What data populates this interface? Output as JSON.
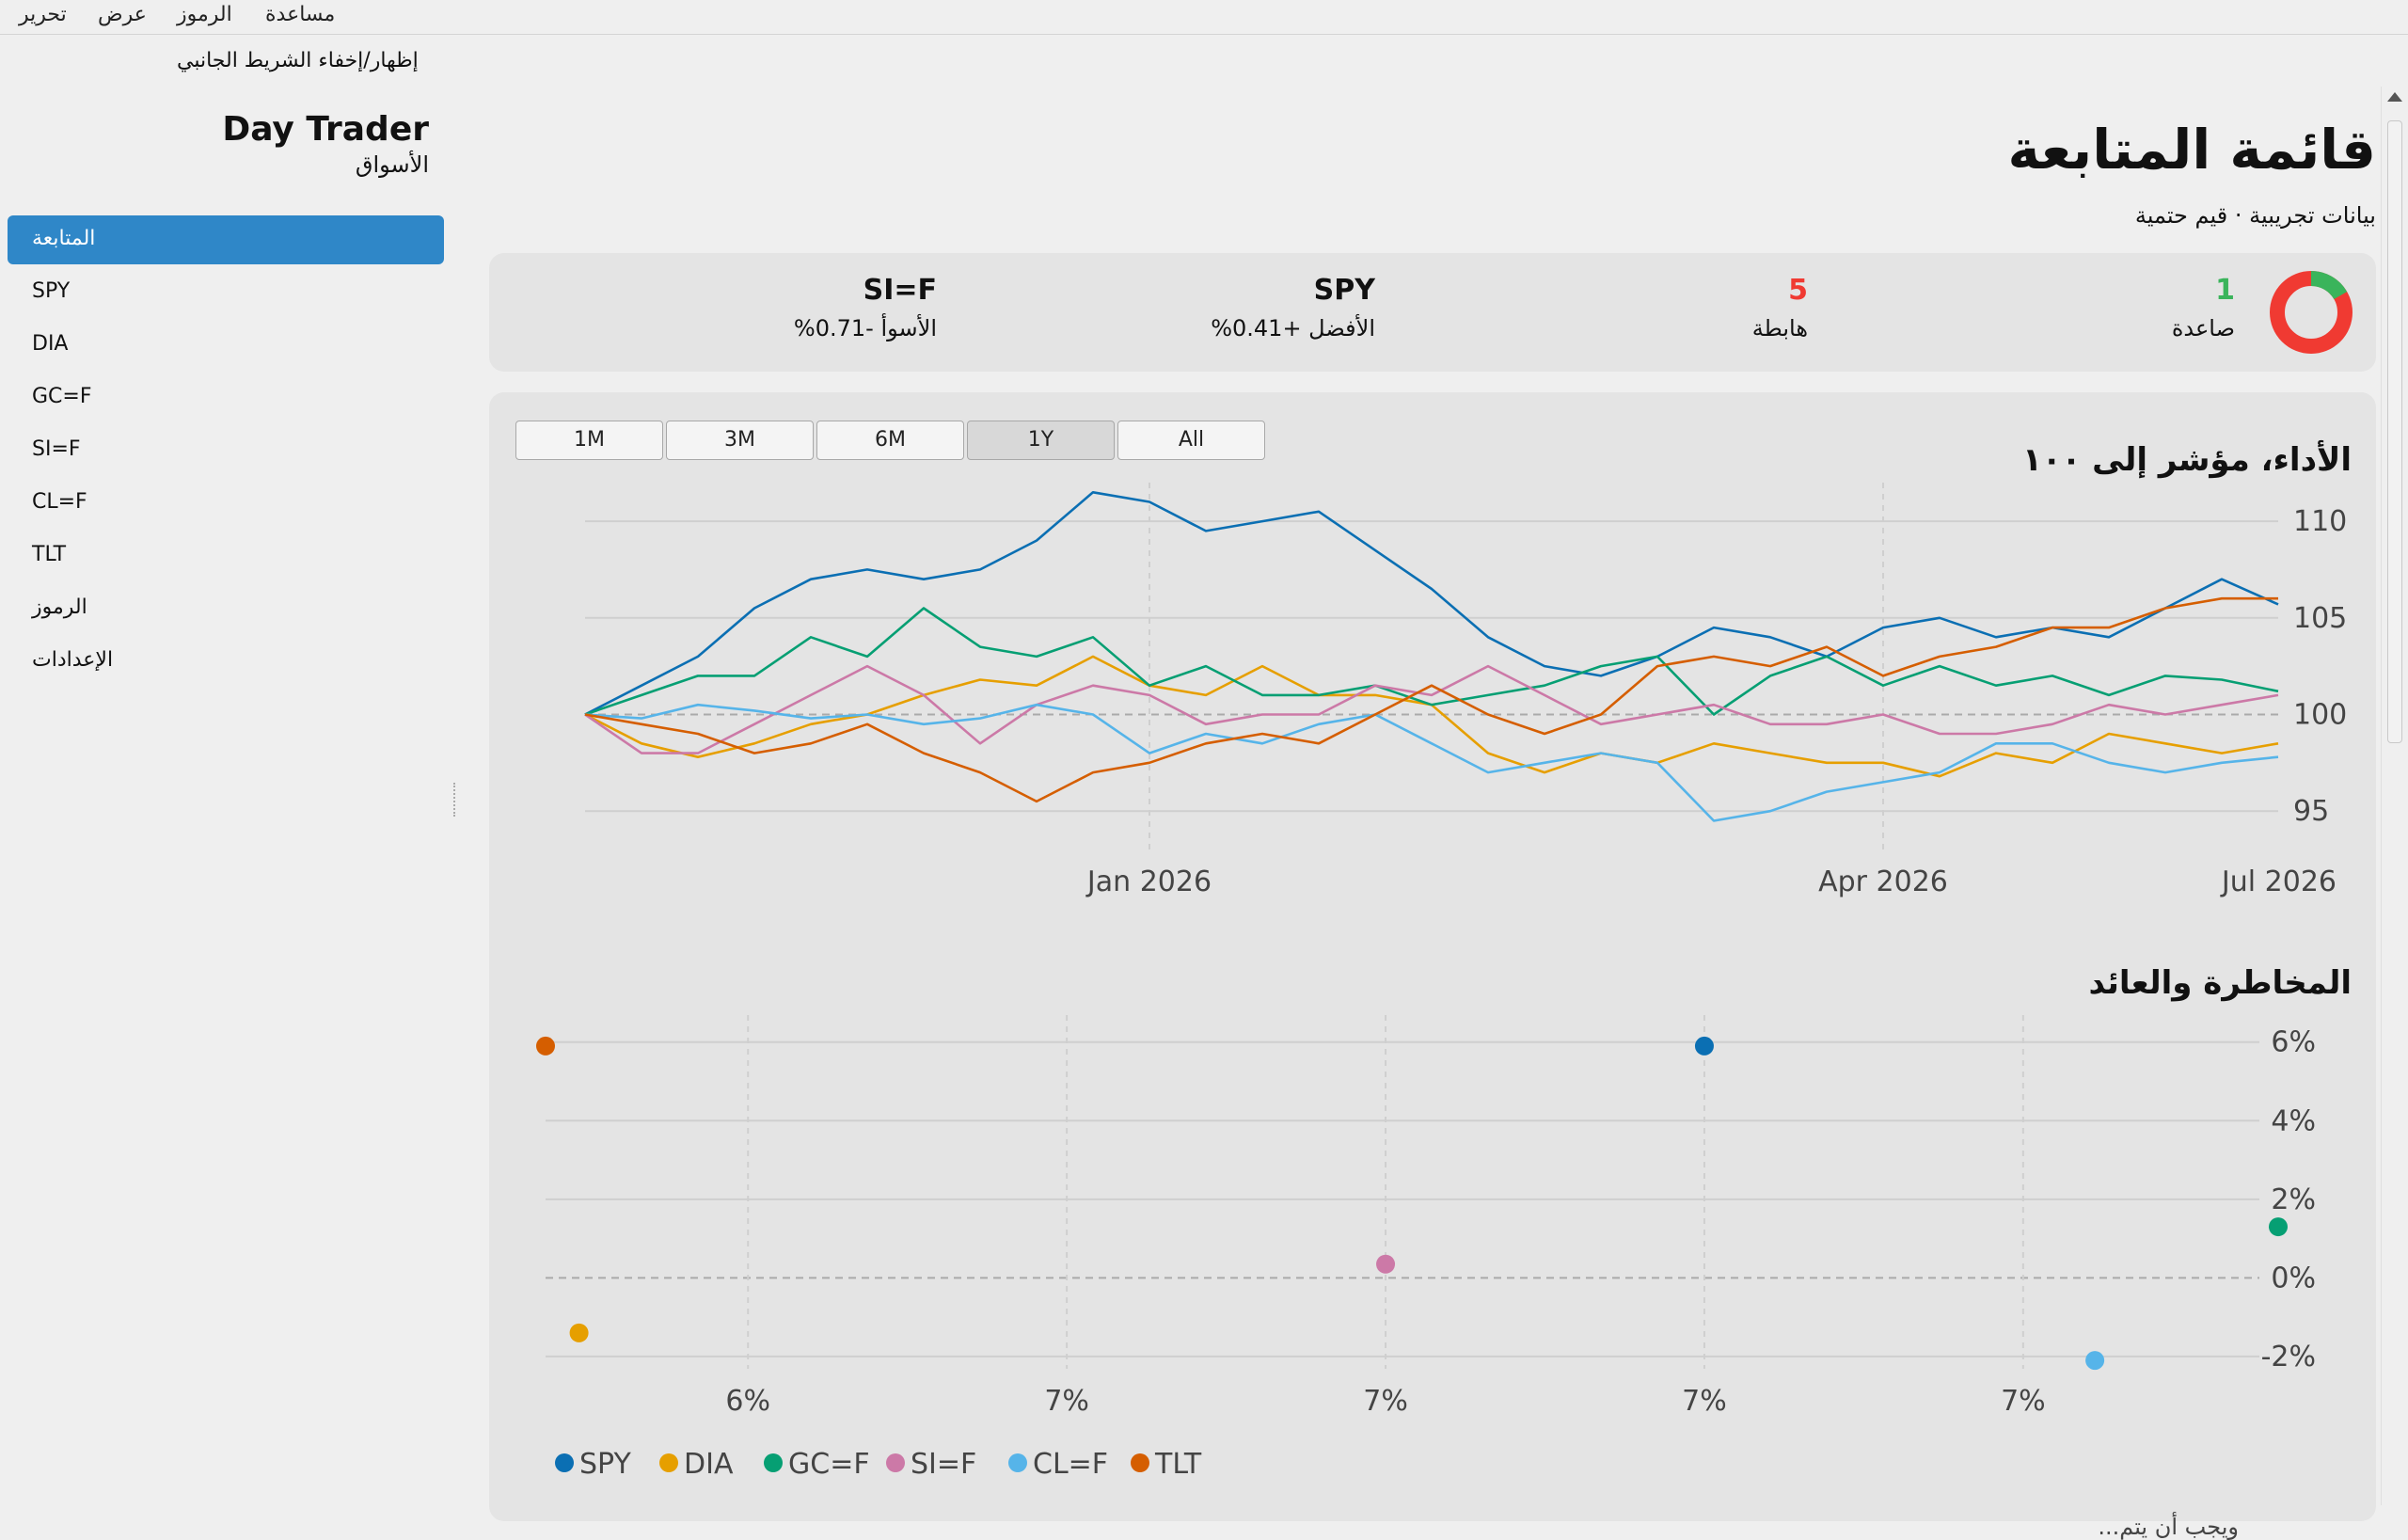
{
  "menu": [
    "تحرير",
    "عرض",
    "الرموز",
    "مساعدة"
  ],
  "sidebar": {
    "toggle_label": "إظهار/إخفاء الشريط الجانبي",
    "app_title": "Day Trader",
    "app_subtitle": "الأسواق",
    "items": [
      {
        "label": "المتابعة"
      },
      {
        "label": "SPY"
      },
      {
        "label": "DIA"
      },
      {
        "label": "GC=F"
      },
      {
        "label": "SI=F"
      },
      {
        "label": "CL=F"
      },
      {
        "label": "TLT"
      },
      {
        "label": "الرموز"
      },
      {
        "label": "الإعدادات"
      }
    ]
  },
  "page": {
    "title": "قائمة المتابعة",
    "subtitle": "بيانات تجريبية · قيم حتمية"
  },
  "summary": {
    "up_count": "1",
    "up_label": "صاعدة",
    "down_count": "5",
    "down_label": "هابطة",
    "best_symbol": "SPY",
    "best_label": "الأفضل +0.41%",
    "worst_symbol": "SI=F",
    "worst_label": "الأسوأ -0.71%",
    "up_color": "#3ab45b",
    "down_color": "#f03a32"
  },
  "performance": {
    "title": "الأداء، مؤشر إلى ١٠٠",
    "ranges": [
      "1M",
      "3M",
      "6M",
      "1Y",
      "All"
    ],
    "active_range": "1Y"
  },
  "risk": {
    "title": "المخاطرة والعائد",
    "footer_partial": "ويجب أن يتم..."
  },
  "colors": {
    "SPY": "#0b6fb3",
    "DIA": "#e69f00",
    "GC=F": "#069f73",
    "SI=F": "#cc79a7",
    "CL=F": "#56b4e9",
    "TLT": "#d55e00"
  },
  "chart_data": [
    {
      "type": "line",
      "title": "الأداء، مؤشر إلى ١٠٠",
      "x_ticks": [
        "Jan 2026",
        "Apr 2026",
        "Jul 2026"
      ],
      "y_ticks": [
        95,
        100,
        105,
        110
      ],
      "ylim": [
        93.5,
        112
      ],
      "grid": true,
      "legend": "bottom-left",
      "x_index": [
        0,
        10,
        20,
        30,
        40,
        50,
        60,
        70,
        80,
        90,
        100,
        110,
        120,
        130,
        140,
        150,
        160,
        170,
        180,
        190,
        200,
        210,
        220,
        230,
        240,
        250,
        260,
        270,
        280,
        290,
        300
      ],
      "series": [
        {
          "name": "SPY",
          "values": [
            100,
            101.5,
            103,
            105.5,
            107,
            107.5,
            107,
            107.5,
            109,
            111.5,
            111,
            109.5,
            110,
            110.5,
            108.5,
            106.5,
            104,
            102.5,
            102,
            103,
            104.5,
            104,
            103,
            104.5,
            105,
            104,
            104.5,
            104,
            105.5,
            107,
            105.7
          ]
        },
        {
          "name": "DIA",
          "values": [
            100,
            98.5,
            97.8,
            98.5,
            99.5,
            100,
            101,
            101.8,
            101.5,
            103,
            101.5,
            101,
            102.5,
            101,
            101,
            100.5,
            98,
            97,
            98,
            97.5,
            98.5,
            98,
            97.5,
            97.5,
            96.8,
            98,
            97.5,
            99,
            98.5,
            98,
            98.5
          ]
        },
        {
          "name": "GC=F",
          "values": [
            100,
            101,
            102,
            102,
            104,
            103,
            105.5,
            103.5,
            103,
            104,
            101.5,
            102.5,
            101,
            101,
            101.5,
            100.5,
            101,
            101.5,
            102.5,
            103,
            100,
            102,
            103,
            101.5,
            102.5,
            101.5,
            102,
            101,
            102,
            101.8,
            101.2
          ]
        },
        {
          "name": "SI=F",
          "values": [
            100,
            98,
            98,
            99.5,
            101,
            102.5,
            101,
            98.5,
            100.5,
            101.5,
            101,
            99.5,
            100,
            100,
            101.5,
            101,
            102.5,
            101,
            99.5,
            100,
            100.5,
            99.5,
            99.5,
            100,
            99,
            99,
            99.5,
            100.5,
            100,
            100.5,
            101
          ]
        },
        {
          "name": "CL=F",
          "values": [
            100,
            99.8,
            100.5,
            100.2,
            99.8,
            100,
            99.5,
            99.8,
            100.5,
            100,
            98,
            99,
            98.5,
            99.5,
            100,
            98.5,
            97,
            97.5,
            98,
            97.5,
            94.5,
            95,
            96,
            96.5,
            97,
            98.5,
            98.5,
            97.5,
            97,
            97.5,
            97.8
          ]
        },
        {
          "name": "TLT",
          "values": [
            100,
            99.5,
            99,
            98,
            98.5,
            99.5,
            98,
            97,
            95.5,
            97,
            97.5,
            98.5,
            99,
            98.5,
            100,
            101.5,
            100,
            99,
            100,
            102.5,
            103,
            102.5,
            103.5,
            102,
            103,
            103.5,
            104.5,
            104.5,
            105.5,
            106,
            106
          ]
        }
      ]
    },
    {
      "type": "scatter",
      "title": "المخاطرة والعائد",
      "x_tick_labels": [
        "6%",
        "7%",
        "7%",
        "7%",
        "7%"
      ],
      "x_ticks": [
        6.4,
        6.6,
        6.8,
        7.0,
        7.2
      ],
      "y_tick_labels": [
        "6%",
        "4%",
        "2%",
        "0%",
        "-2%"
      ],
      "y_ticks": [
        6,
        4,
        2,
        0,
        -2
      ],
      "xlim": [
        6.273,
        7.36
      ],
      "ylim": [
        -2.6,
        6.4
      ],
      "grid": true,
      "legend": "bottom-left",
      "series": [
        {
          "name": "SPY",
          "x": 7.0,
          "y": 5.9
        },
        {
          "name": "DIA",
          "x": 6.294,
          "y": -1.4
        },
        {
          "name": "GC=F",
          "x": 7.36,
          "y": 1.3
        },
        {
          "name": "SI=F",
          "x": 6.8,
          "y": 0.35
        },
        {
          "name": "CL=F",
          "x": 7.245,
          "y": -2.1
        },
        {
          "name": "TLT",
          "x": 6.273,
          "y": 5.9
        }
      ]
    }
  ]
}
